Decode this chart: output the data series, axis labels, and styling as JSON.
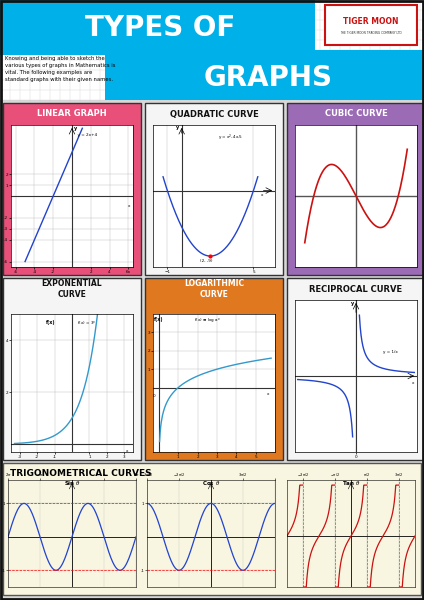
{
  "title_line1": "TYPES OF",
  "title_line2": "GRAPHS",
  "subtitle": "Knowing and being able to sketch the\nvarious types of graphs in Mathematics is\nvital. The following examples are\nstandard graphs with their given names.",
  "bg_color": "#d8d8d8",
  "grid_bg": "#e8e8e8",
  "header_bg": "#00b0e8",
  "header_text_color": "#ffffff",
  "panel_colors": {
    "linear": "#e8507a",
    "quadratic": "#f5f5f5",
    "cubic": "#9b6bb5",
    "exponential": "#f5f5f5",
    "logarithmic": "#e07820",
    "reciprocal": "#f5f5f5",
    "trig": "#f8f5e0"
  },
  "label_colors": {
    "linear": "#ffffff",
    "quadratic": "#111111",
    "cubic": "#ffffff",
    "exponential": "#111111",
    "logarithmic": "#ffffff",
    "reciprocal": "#111111"
  },
  "curve_colors": {
    "linear": "#2244cc",
    "quadratic": "#2244cc",
    "cubic": "#cc1111",
    "exponential": "#3399cc",
    "logarithmic": "#3399cc",
    "reciprocal": "#2244cc",
    "sin": "#2244cc",
    "cos": "#2244cc",
    "tan": "#cc1111"
  },
  "tiger_moon_color": "#cc1111",
  "border_color": "#222222"
}
